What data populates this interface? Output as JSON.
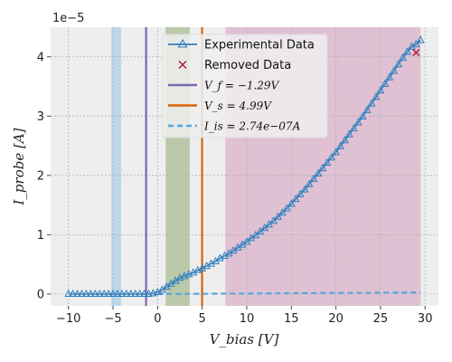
{
  "chart_data": {
    "type": "scatter",
    "title": "",
    "xlabel": "V_bias [V]",
    "ylabel": "I_probe [A]",
    "y_offset_text": "1e−5",
    "xlim": [
      -12,
      31.5
    ],
    "ylim": [
      -0.2,
      4.5
    ],
    "y_scale_factor": 1e-05,
    "x_ticks": [
      -10,
      -5,
      0,
      5,
      10,
      15,
      20,
      25,
      30
    ],
    "y_ticks": [
      0,
      1,
      2,
      3,
      4
    ],
    "grid": true,
    "legend_placement": "top-center",
    "legend": [
      {
        "key": "experimental",
        "label": "Experimental Data",
        "marker": "triangle-line",
        "color": "#2f7fbf"
      },
      {
        "key": "removed",
        "label": "Removed Data",
        "marker": "x",
        "color": "#b2182b"
      },
      {
        "key": "vf",
        "label": "V_f = −1.29V",
        "marker": "line",
        "color": "#7b68b0"
      },
      {
        "key": "vs",
        "label": "V_s = 4.99V",
        "marker": "line",
        "color": "#d9640a"
      },
      {
        "key": "iis",
        "label": "I_is = 2.74e−07A",
        "marker": "dashed",
        "color": "#56a8e0"
      }
    ],
    "regions": [
      {
        "name": "ion-saturation-span",
        "x0": -5.2,
        "x1": -4.1,
        "color": "#9fcde9"
      },
      {
        "name": "transition-span",
        "x0": 0.9,
        "x1": 3.6,
        "color": "#9fb685"
      },
      {
        "name": "electron-region-span",
        "x0": 7.6,
        "x1": 29.5,
        "color": "#d7a9c4"
      }
    ],
    "vertical_lines": [
      {
        "name": "vf-line",
        "x": -1.29,
        "color": "#7b68b0"
      },
      {
        "name": "vs-line",
        "x": 4.99,
        "color": "#d9640a"
      }
    ],
    "ion_fit": {
      "x": [
        0,
        29.5
      ],
      "y": [
        0.0,
        0.027
      ],
      "color": "#56a8e0"
    },
    "removed_points": [
      {
        "x": 29.0,
        "y": 4.07
      }
    ],
    "series": [
      {
        "name": "Experimental Data",
        "color": "#2f7fbf",
        "x": [
          -10,
          -9.5,
          -9,
          -8.5,
          -8,
          -7.5,
          -7,
          -6.5,
          -6,
          -5.5,
          -5,
          -4.5,
          -4,
          -3.5,
          -3,
          -2.5,
          -2,
          -1.5,
          -1,
          -0.5,
          0,
          0.5,
          1,
          1.5,
          2,
          2.5,
          3,
          3.5,
          4,
          4.5,
          5,
          5.5,
          6,
          6.5,
          7,
          7.5,
          8,
          8.5,
          9,
          9.5,
          10,
          10.5,
          11,
          11.5,
          12,
          12.5,
          13,
          13.5,
          14,
          14.5,
          15,
          15.5,
          16,
          16.5,
          17,
          17.5,
          18,
          18.5,
          19,
          19.5,
          20,
          20.5,
          21,
          21.5,
          22,
          22.5,
          23,
          23.5,
          24,
          24.5,
          25,
          25.5,
          26,
          26.5,
          27,
          27.5,
          28,
          28.5,
          29,
          29.5
        ],
        "y": [
          0.0,
          0.0,
          0.0,
          0.0,
          0.0,
          0.0,
          0.0,
          0.0,
          0.0,
          0.0,
          0.0,
          0.0,
          0.0,
          0.0,
          0.0,
          0.0,
          0.0,
          0.0,
          0.0,
          0.01,
          0.03,
          0.07,
          0.12,
          0.17,
          0.22,
          0.27,
          0.3,
          0.33,
          0.36,
          0.4,
          0.43,
          0.47,
          0.51,
          0.55,
          0.6,
          0.64,
          0.68,
          0.73,
          0.78,
          0.83,
          0.88,
          0.94,
          0.99,
          1.05,
          1.11,
          1.17,
          1.23,
          1.3,
          1.37,
          1.44,
          1.52,
          1.6,
          1.68,
          1.76,
          1.85,
          1.94,
          2.03,
          2.12,
          2.21,
          2.3,
          2.39,
          2.49,
          2.59,
          2.69,
          2.79,
          2.89,
          2.99,
          3.1,
          3.21,
          3.32,
          3.43,
          3.54,
          3.65,
          3.76,
          3.87,
          3.98,
          4.08,
          4.17,
          4.21,
          4.28
        ]
      }
    ]
  }
}
